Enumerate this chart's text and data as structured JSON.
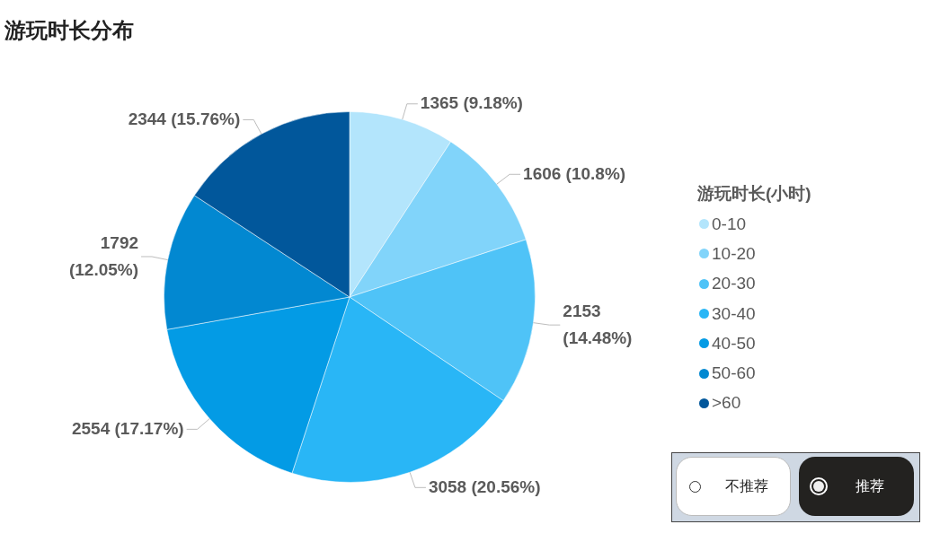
{
  "chart_data": {
    "type": "pie",
    "title": "游玩时长分布",
    "legend_title": "游玩时长(小时)",
    "categories": [
      "0-10",
      "10-20",
      "20-30",
      "30-40",
      "40-50",
      "50-60",
      ">60"
    ],
    "values": [
      1365,
      1606,
      2153,
      3058,
      2554,
      1792,
      2344
    ],
    "colors": [
      "#b3e5fc",
      "#81d4fa",
      "#4fc3f7",
      "#29b6f6",
      "#039be5",
      "#0288d1",
      "#01579b"
    ],
    "value_labels": [
      "1365 (9.18%)",
      "1606 (10.8%)",
      "2153 (14.48%)",
      "3058 (20.56%)",
      "2554 (17.17%)",
      "1792 (12.05%)",
      "2344 (15.76%)"
    ],
    "legend": "right",
    "annotations": [
      "不推荐",
      "推荐"
    ]
  }
}
